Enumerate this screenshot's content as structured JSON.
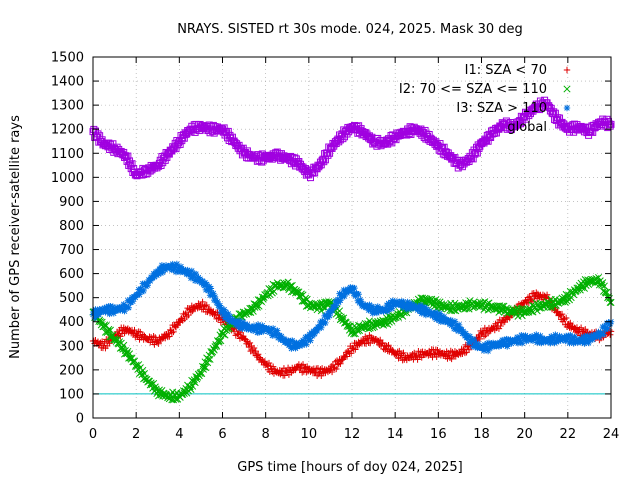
{
  "chart_data": {
    "type": "scatter",
    "title": "NRAYS. SISTED rt 30s mode. 024, 2025. Mask 30 deg",
    "xlabel": "GPS time [hours of doy 024, 2025]",
    "ylabel": "Number of GPS receiver-satellite rays",
    "xlim": [
      0,
      24
    ],
    "ylim": [
      0,
      1500
    ],
    "xticks": [
      0,
      2,
      4,
      6,
      8,
      10,
      12,
      14,
      16,
      18,
      20,
      22,
      24
    ],
    "yticks": [
      0,
      100,
      200,
      300,
      400,
      500,
      600,
      700,
      800,
      900,
      1000,
      1100,
      1200,
      1300,
      1400,
      1500
    ],
    "grid": true,
    "legend_position": "top-right",
    "reference_line": {
      "y": 100,
      "color": "#00c0c0"
    },
    "series": [
      {
        "name": "I1: SZA < 70",
        "marker": "+",
        "color": "#e00000",
        "x": [
          0,
          0.5,
          1,
          1.5,
          2,
          2.5,
          3,
          3.5,
          4,
          4.5,
          5,
          5.5,
          6,
          6.5,
          7,
          7.5,
          8,
          8.5,
          9,
          9.5,
          10,
          10.5,
          11,
          11.5,
          12,
          12.5,
          13,
          13.5,
          14,
          14.5,
          15,
          15.5,
          16,
          16.5,
          17,
          17.5,
          18,
          18.5,
          19,
          19.5,
          20,
          20.5,
          21,
          21.5,
          22,
          22.5,
          23,
          23.5,
          24
        ],
        "y": [
          320,
          300,
          340,
          370,
          350,
          330,
          320,
          350,
          400,
          450,
          470,
          440,
          410,
          370,
          330,
          270,
          220,
          190,
          190,
          210,
          200,
          190,
          200,
          240,
          290,
          320,
          330,
          300,
          270,
          250,
          260,
          270,
          270,
          260,
          270,
          300,
          350,
          370,
          400,
          440,
          480,
          510,
          500,
          440,
          390,
          360,
          350,
          340,
          360
        ]
      },
      {
        "name": "I2: 70 <= SZA <= 110",
        "marker": "x",
        "color": "#00b000",
        "x": [
          0,
          0.5,
          1,
          1.5,
          2,
          2.5,
          3,
          3.5,
          4,
          4.5,
          5,
          5.5,
          6,
          6.5,
          7,
          7.5,
          8,
          8.5,
          9,
          9.5,
          10,
          10.5,
          11,
          11.5,
          12,
          12.5,
          13,
          13.5,
          14,
          14.5,
          15,
          15.5,
          16,
          16.5,
          17,
          17.5,
          18,
          18.5,
          19,
          19.5,
          20,
          20.5,
          21,
          21.5,
          22,
          22.5,
          23,
          23.5,
          24
        ],
        "y": [
          440,
          380,
          330,
          280,
          220,
          160,
          110,
          90,
          90,
          130,
          190,
          270,
          350,
          400,
          430,
          460,
          510,
          550,
          550,
          520,
          470,
          460,
          480,
          420,
          360,
          380,
          390,
          400,
          420,
          450,
          480,
          490,
          470,
          460,
          460,
          470,
          470,
          460,
          450,
          440,
          440,
          460,
          470,
          480,
          500,
          540,
          570,
          570,
          480
        ]
      },
      {
        "name": "I3: SZA > 110",
        "marker": "*",
        "color": "#0070e0",
        "x": [
          0,
          0.5,
          1,
          1.5,
          2,
          2.5,
          3,
          3.5,
          4,
          4.5,
          5,
          5.5,
          6,
          6.5,
          7,
          7.5,
          8,
          8.5,
          9,
          9.5,
          10,
          10.5,
          11,
          11.5,
          12,
          12.5,
          13,
          13.5,
          14,
          14.5,
          15,
          15.5,
          16,
          16.5,
          17,
          17.5,
          18,
          18.5,
          19,
          19.5,
          20,
          20.5,
          21,
          21.5,
          22,
          22.5,
          23,
          23.5,
          24
        ],
        "y": [
          430,
          450,
          450,
          460,
          510,
          560,
          610,
          630,
          620,
          600,
          570,
          520,
          440,
          400,
          380,
          370,
          370,
          350,
          310,
          300,
          330,
          380,
          440,
          510,
          540,
          470,
          450,
          450,
          480,
          470,
          460,
          440,
          420,
          400,
          370,
          320,
          290,
          300,
          310,
          320,
          330,
          330,
          320,
          330,
          330,
          320,
          330,
          350,
          400
        ]
      },
      {
        "name": "global",
        "marker": "square",
        "color": "#a000e0",
        "x": [
          0,
          0.5,
          1,
          1.5,
          2,
          2.5,
          3,
          3.5,
          4,
          4.5,
          5,
          5.5,
          6,
          6.5,
          7,
          7.5,
          8,
          8.5,
          9,
          9.5,
          10,
          10.5,
          11,
          11.5,
          12,
          12.5,
          13,
          13.5,
          14,
          14.5,
          15,
          15.5,
          16,
          16.5,
          17,
          17.5,
          18,
          18.5,
          19,
          19.5,
          20,
          20.5,
          21,
          21.5,
          22,
          22.5,
          23,
          23.5,
          24
        ],
        "y": [
          1190,
          1140,
          1120,
          1090,
          1010,
          1030,
          1050,
          1100,
          1150,
          1200,
          1210,
          1200,
          1200,
          1150,
          1100,
          1080,
          1080,
          1090,
          1080,
          1060,
          1010,
          1050,
          1120,
          1170,
          1210,
          1190,
          1150,
          1140,
          1170,
          1190,
          1200,
          1170,
          1130,
          1090,
          1050,
          1080,
          1140,
          1180,
          1220,
          1210,
          1250,
          1290,
          1310,
          1240,
          1200,
          1210,
          1190,
          1230,
          1220
        ]
      }
    ]
  }
}
